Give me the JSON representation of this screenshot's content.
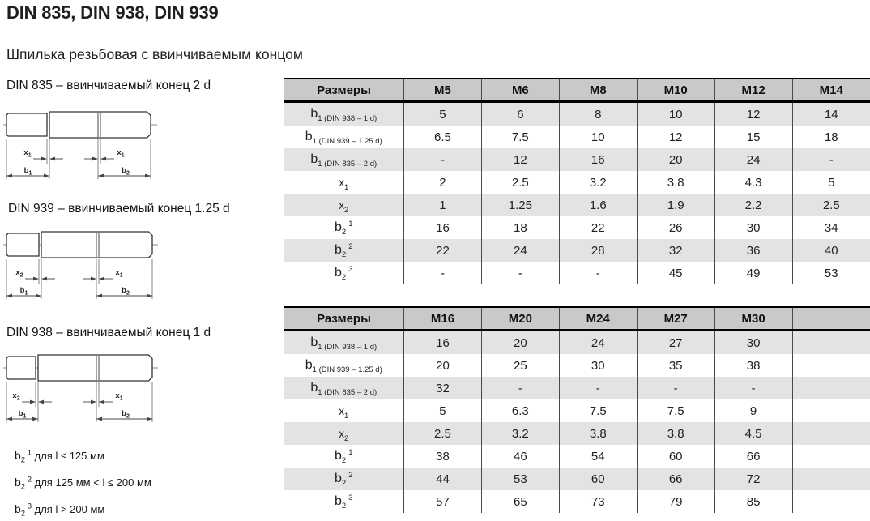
{
  "page": {
    "title": "DIN 835, DIN 938, DIN 939",
    "subtitle": "Шпилька резьбовая с ввинчиваемым концом"
  },
  "colors": {
    "header_bg": "#c9c9c9",
    "row_shade": "#e3e3e3",
    "table_border": "#000000",
    "column_divider": "#4a4a4a",
    "text": "#1f1f1f"
  },
  "drawings": [
    {
      "label": "DIN 835 – ввинчиваемый конец 2 d",
      "dim_left": {
        "base": "x",
        "sub": "1"
      },
      "dim_right": {
        "base": "x",
        "sub": "1"
      },
      "dim_b_left": {
        "base": "b",
        "sub": "1"
      },
      "dim_b_right": {
        "base": "b",
        "sub": "2"
      }
    },
    {
      "label": "DIN 939 – ввинчиваемый конец 1.25 d",
      "dim_left": {
        "base": "x",
        "sub": "2"
      },
      "dim_right": {
        "base": "x",
        "sub": "1"
      },
      "dim_b_left": {
        "base": "b",
        "sub": "1"
      },
      "dim_b_right": {
        "base": "b",
        "sub": "2"
      }
    },
    {
      "label": "DIN 938 – ввинчиваемый конец 1 d",
      "dim_left": {
        "base": "x",
        "sub": "2"
      },
      "dim_right": {
        "base": "x",
        "sub": "1"
      },
      "dim_b_left": {
        "base": "b",
        "sub": "1"
      },
      "dim_b_right": {
        "base": "b",
        "sub": "2"
      }
    }
  ],
  "footnotes": [
    {
      "label": {
        "base": "b",
        "sub": "2",
        "sup": "1"
      },
      "text": "для l ≤ 125 мм"
    },
    {
      "label": {
        "base": "b",
        "sub": "2",
        "sup": "2"
      },
      "text": "для 125 мм < l ≤ 200 мм"
    },
    {
      "label": {
        "base": "b",
        "sub": "2",
        "sup": "3"
      },
      "text": "для l > 200 мм"
    }
  ],
  "tables": [
    {
      "name": "sizes-m5-m14",
      "header": [
        "Размеры",
        "M5",
        "M6",
        "M8",
        "M10",
        "M12",
        "M14"
      ],
      "rows": [
        {
          "label": {
            "base": "b",
            "sub": "1 (DIN 938 – 1 d)"
          },
          "values": [
            "5",
            "6",
            "8",
            "10",
            "12",
            "14"
          ]
        },
        {
          "label": {
            "base": "b",
            "sub": "1 (DIN 939 – 1.25 d)"
          },
          "values": [
            "6.5",
            "7.5",
            "10",
            "12",
            "15",
            "18"
          ]
        },
        {
          "label": {
            "base": "b",
            "sub": "1 (DIN 835 – 2 d)"
          },
          "values": [
            "-",
            "12",
            "16",
            "20",
            "24",
            "-"
          ]
        },
        {
          "label": {
            "base": "x",
            "sub": "1"
          },
          "values": [
            "2",
            "2.5",
            "3.2",
            "3.8",
            "4.3",
            "5"
          ]
        },
        {
          "label": {
            "base": "x",
            "sub": "2"
          },
          "values": [
            "1",
            "1.25",
            "1.6",
            "1.9",
            "2.2",
            "2.5"
          ]
        },
        {
          "label": {
            "base": "b",
            "sub": "2",
            "sup": "1"
          },
          "values": [
            "16",
            "18",
            "22",
            "26",
            "30",
            "34"
          ]
        },
        {
          "label": {
            "base": "b",
            "sub": "2",
            "sup": "2"
          },
          "values": [
            "22",
            "24",
            "28",
            "32",
            "36",
            "40"
          ]
        },
        {
          "label": {
            "base": "b",
            "sub": "2",
            "sup": "3"
          },
          "values": [
            "-",
            "-",
            "-",
            "45",
            "49",
            "53"
          ]
        }
      ]
    },
    {
      "name": "sizes-m16-m30",
      "header": [
        "Размеры",
        "M16",
        "M20",
        "M24",
        "M27",
        "M30",
        ""
      ],
      "rows": [
        {
          "label": {
            "base": "b",
            "sub": "1 (DIN 938 – 1 d)"
          },
          "values": [
            "16",
            "20",
            "24",
            "27",
            "30",
            ""
          ]
        },
        {
          "label": {
            "base": "b",
            "sub": "1 (DIN 939 – 1.25 d)"
          },
          "values": [
            "20",
            "25",
            "30",
            "35",
            "38",
            ""
          ]
        },
        {
          "label": {
            "base": "b",
            "sub": "1 (DIN 835 – 2 d)"
          },
          "values": [
            "32",
            "-",
            "-",
            "-",
            "-",
            ""
          ]
        },
        {
          "label": {
            "base": "x",
            "sub": "1"
          },
          "values": [
            "5",
            "6.3",
            "7.5",
            "7.5",
            "9",
            ""
          ]
        },
        {
          "label": {
            "base": "x",
            "sub": "2"
          },
          "values": [
            "2.5",
            "3.2",
            "3.8",
            "3.8",
            "4.5",
            ""
          ]
        },
        {
          "label": {
            "base": "b",
            "sub": "2",
            "sup": "1"
          },
          "values": [
            "38",
            "46",
            "54",
            "60",
            "66",
            ""
          ]
        },
        {
          "label": {
            "base": "b",
            "sub": "2",
            "sup": "2"
          },
          "values": [
            "44",
            "53",
            "60",
            "66",
            "72",
            ""
          ]
        },
        {
          "label": {
            "base": "b",
            "sub": "2",
            "sup": "3"
          },
          "values": [
            "57",
            "65",
            "73",
            "79",
            "85",
            ""
          ]
        }
      ]
    }
  ]
}
